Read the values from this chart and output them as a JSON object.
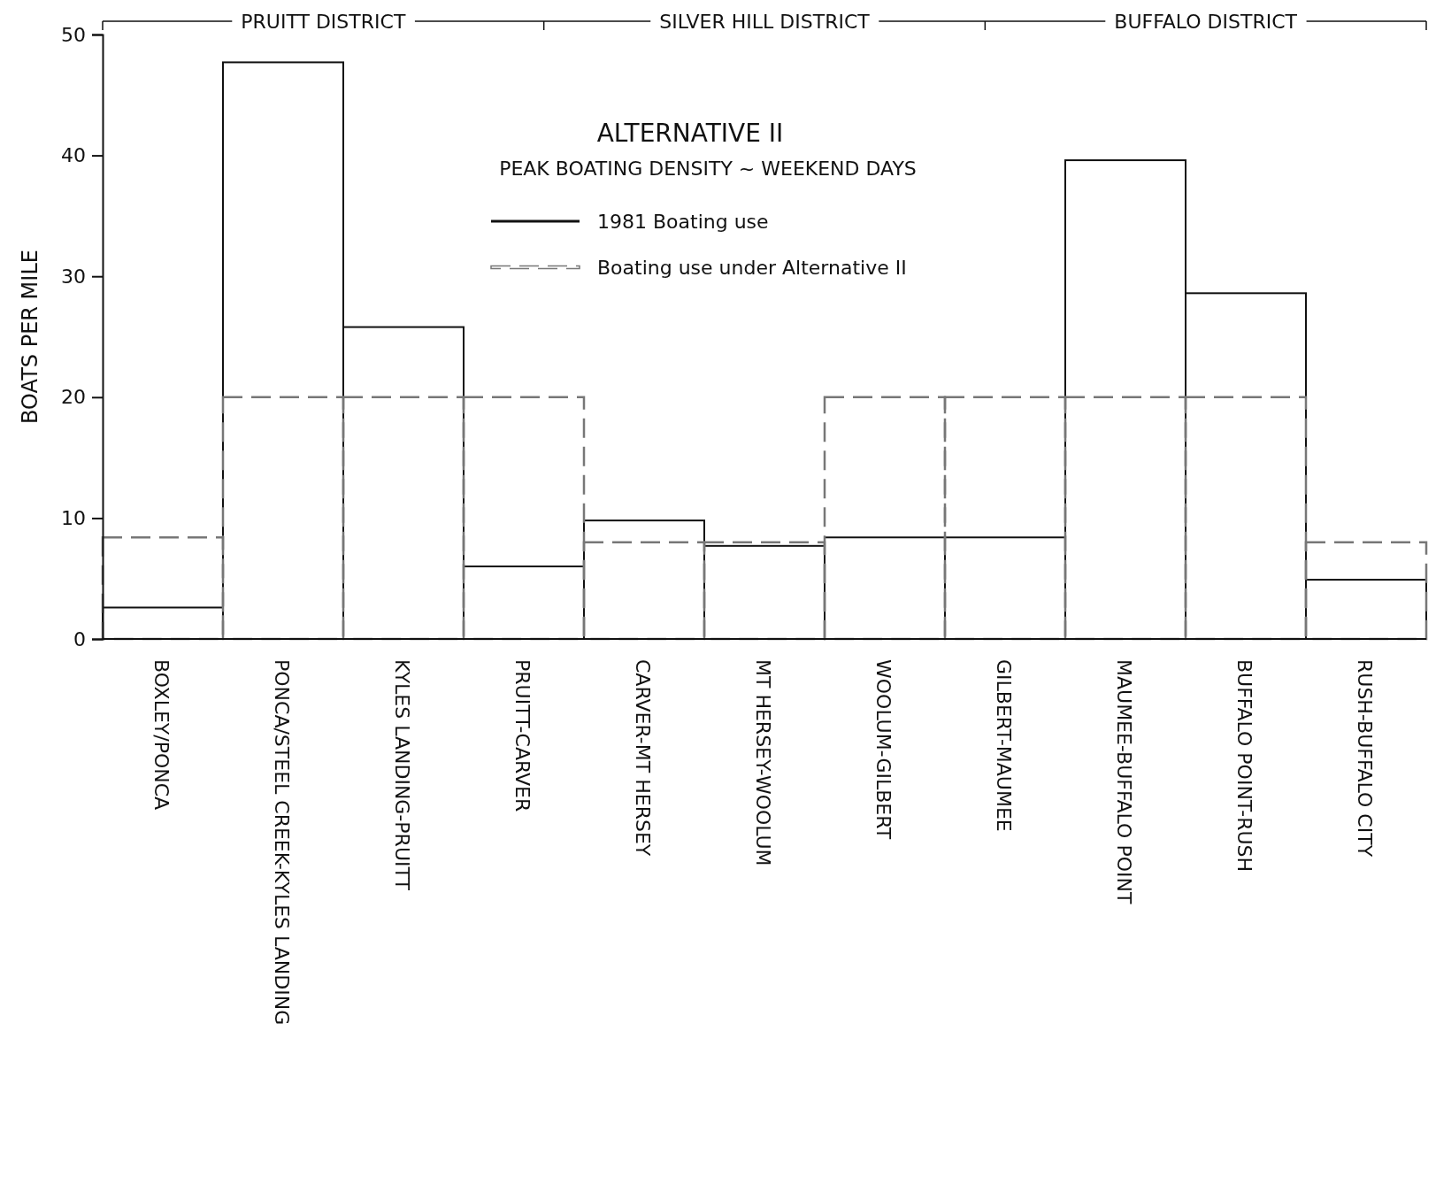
{
  "chart_data": {
    "type": "bar",
    "title": "ALTERNATIVE II",
    "subtitle": "PEAK BOATING DENSITY ~ WEEKEND DAYS",
    "ylabel": "BOATS PER MILE",
    "categories": [
      "BOXLEY/PONCA",
      "PONCA/STEEL CREEK-KYLES LANDING",
      "KYLES LANDING-PRUITT",
      "PRUITT-CARVER",
      "CARVER-MT HERSEY",
      "MT HERSEY-WOOLUM",
      "WOOLUM-GILBERT",
      "GILBERT-MAUMEE",
      "MAUMEE-BUFFALO POINT",
      "BUFFALO POINT-RUSH",
      "RUSH-BUFFALO CITY"
    ],
    "series": [
      {
        "name": "1981 Boating use",
        "color": "#111111",
        "line_style": "solid",
        "values": [
          2.6,
          47.7,
          25.8,
          6.0,
          9.8,
          7.7,
          8.4,
          8.4,
          39.6,
          28.6,
          4.9
        ]
      },
      {
        "name": "Boating use under Alternative II",
        "color": "#777777",
        "line_style": "dashed",
        "values": [
          8.4,
          20,
          20,
          20,
          8.0,
          8.0,
          20,
          20,
          20,
          20,
          8.0
        ]
      }
    ],
    "ylim": [
      0,
      50
    ],
    "yticks": [
      0,
      10,
      20,
      30,
      40,
      50
    ],
    "grid": false,
    "legend": "top",
    "annotations": [
      "PRUITT DISTRICT",
      "SILVER HILL DISTRICT",
      "BUFFALO DISTRICT"
    ]
  }
}
